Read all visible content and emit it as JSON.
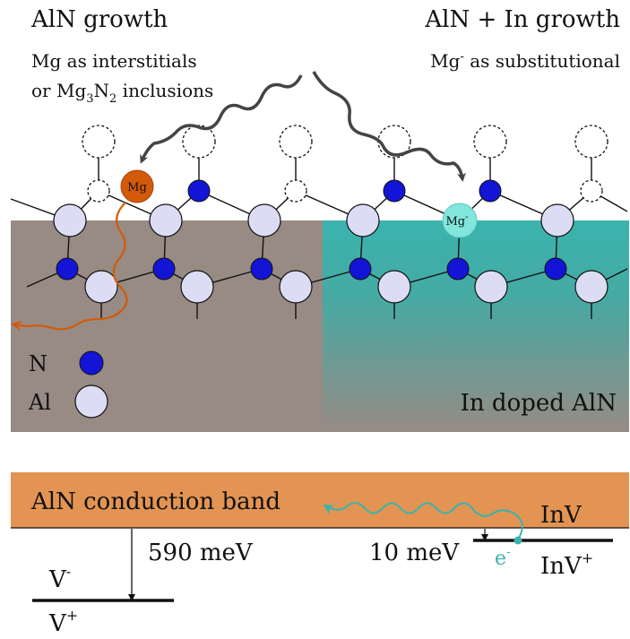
{
  "top_left": {
    "title": "AlN growth",
    "line1": "Mg as interstitials",
    "line2_prefix": "or Mg",
    "line2_sub1": "3",
    "line2_mid": "N",
    "line2_sub2": "2",
    "line2_suffix": " inclusions"
  },
  "top_right": {
    "title": "AlN + In growth",
    "line1_prefix": "Mg",
    "line1_sup": "-",
    "line1_suffix": " as substitutional"
  },
  "atoms": {
    "mg_label": "Mg",
    "mg_minus_label": "Mg",
    "mg_minus_sup": "-"
  },
  "legend": {
    "n_label": "N",
    "al_label": "Al"
  },
  "region_label": "In doped AlN",
  "band": {
    "conduction_band": "AlN conduction band",
    "energy_left": "590 meV",
    "energy_right": "10 meV",
    "v_minus": "V",
    "v_minus_sup": "-",
    "v_plus": "V",
    "v_plus_sup": "+",
    "inv": "InV",
    "inv_plus": "InV",
    "inv_plus_sup": "+",
    "electron": "e",
    "electron_sup": "-"
  },
  "colors": {
    "gray_region": "#978b84",
    "teal_region": "#3bb3ad",
    "n_atom": "#1414d6",
    "al_atom": "#dcdcf4",
    "mg_atom": "#d25a0a",
    "mg_minus_atom": "#82e6dc",
    "band": "#e39452",
    "electron_path": "#3bb3ad"
  }
}
